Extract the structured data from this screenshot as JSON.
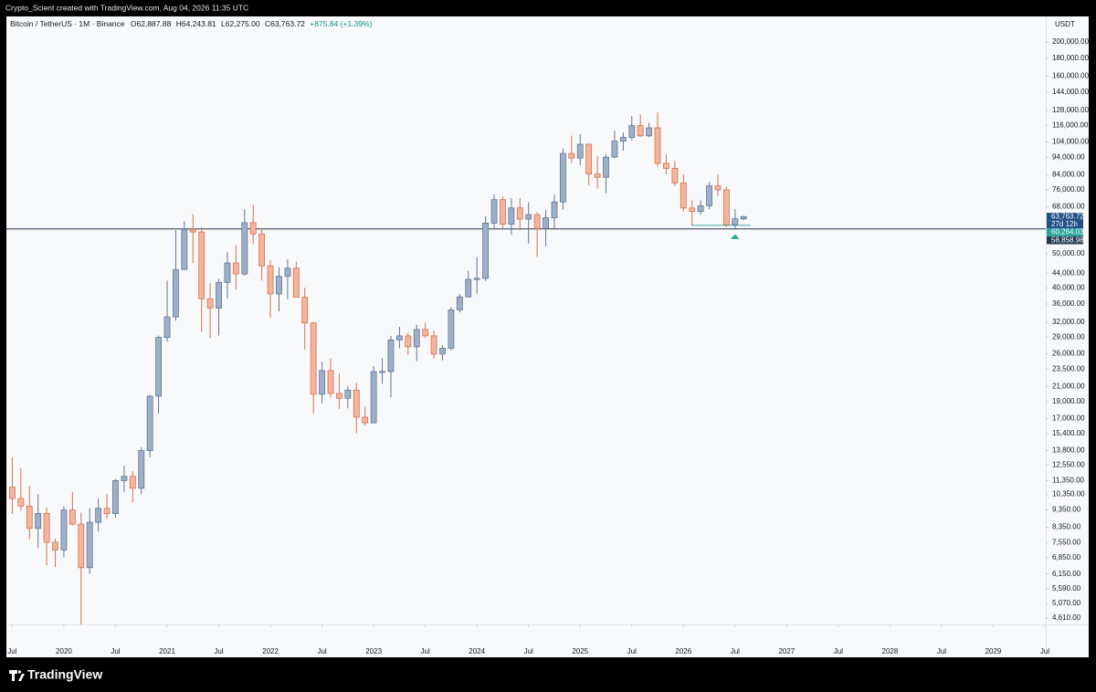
{
  "caption": "Crypto_Scient created with TradingView.com, Aug 04, 2026 11:35 UTC",
  "brand": "TradingView",
  "chart_data": {
    "type": "candlestick",
    "header": {
      "symbol": "Bitcoin / TetherUS · 1M · Binance",
      "open": "O62,887.88",
      "high": "H64,243.81",
      "low": "L62,275.00",
      "close": "C63,763.72",
      "change": "+875.84 (+1.39%)"
    },
    "currency": "USDT",
    "log_scale": true,
    "grid": false,
    "colors": {
      "up": "#9eb0c8",
      "down": "#f5b59d",
      "up_border": "#5f7594",
      "down_border": "#d6714d",
      "background": "#f8f9fb"
    },
    "x": [
      "2019-07",
      "2019-08",
      "2019-09",
      "2019-10",
      "2019-11",
      "2019-12",
      "2020-01",
      "2020-02",
      "2020-03",
      "2020-04",
      "2020-05",
      "2020-06",
      "2020-07",
      "2020-08",
      "2020-09",
      "2020-10",
      "2020-11",
      "2020-12",
      "2021-01",
      "2021-02",
      "2021-03",
      "2021-04",
      "2021-05",
      "2021-06",
      "2021-07",
      "2021-08",
      "2021-09",
      "2021-10",
      "2021-11",
      "2021-12",
      "2022-01",
      "2022-02",
      "2022-03",
      "2022-04",
      "2022-05",
      "2022-06",
      "2022-07",
      "2022-08",
      "2022-09",
      "2022-10",
      "2022-11",
      "2022-12",
      "2023-01",
      "2023-02",
      "2023-03",
      "2023-04",
      "2023-05",
      "2023-06",
      "2023-07",
      "2023-08",
      "2023-09",
      "2023-10",
      "2023-11",
      "2023-12",
      "2024-01",
      "2024-02",
      "2024-03",
      "2024-04",
      "2024-05",
      "2024-06",
      "2024-07",
      "2024-08",
      "2024-09",
      "2024-10",
      "2024-11",
      "2024-12",
      "2025-01",
      "2025-02",
      "2025-03",
      "2025-04",
      "2025-05",
      "2025-06",
      "2025-07",
      "2025-08",
      "2025-09",
      "2025-10",
      "2025-11",
      "2025-12",
      "2026-01",
      "2026-02",
      "2026-03",
      "2026-04",
      "2026-05",
      "2026-06",
      "2026-07",
      "2026-08"
    ],
    "open": [
      10854,
      10080,
      9590,
      8290,
      9140,
      7570,
      7195,
      9350,
      8525,
      6410,
      8625,
      9450,
      9135,
      11335,
      11650,
      10777,
      13791,
      19695,
      28923,
      33092,
      45135,
      58740,
      57694,
      37253,
      35045,
      41462,
      47100,
      43824,
      61300,
      56950,
      46216,
      38466,
      43160,
      45510,
      37630,
      31801,
      19942,
      23293,
      20050,
      19423,
      20490,
      17164,
      16542,
      23125,
      23141,
      28465,
      29233,
      27210,
      30472,
      29232,
      25941,
      26962,
      34639,
      37724,
      42283,
      42580,
      61130,
      71280,
      60672,
      67540,
      62772,
      64628,
      58974,
      63328,
      70215,
      96408,
      93576,
      102430,
      84350,
      82548,
      94172,
      104591,
      107135,
      115764,
      108236,
      114049,
      90400,
      87500,
      79500,
      67500,
      66000,
      68500,
      78000,
      76000,
      60500,
      62887.88
    ],
    "high": [
      13200,
      12325,
      10950,
      10370,
      9510,
      7750,
      9575,
      10500,
      9190,
      9460,
      10080,
      10380,
      11444,
      12468,
      12050,
      14100,
      19863,
      29300,
      41950,
      58352,
      61844,
      64854,
      59500,
      41330,
      42448,
      50500,
      52920,
      67000,
      69000,
      59053,
      47990,
      45821,
      48189,
      47444,
      40023,
      31982,
      24668,
      25211,
      22799,
      20988,
      21480,
      18387,
      23960,
      25250,
      29184,
      31000,
      29820,
      31431,
      31804,
      30244,
      27488,
      35280,
      38450,
      44700,
      48969,
      63913,
      73777,
      72797,
      71979,
      71997,
      70079,
      65660,
      66498,
      73620,
      99588,
      108353,
      109588,
      102500,
      95000,
      95758,
      111980,
      110690,
      123218,
      124474,
      117900,
      126200,
      96000,
      92000,
      84000,
      71000,
      71000,
      80000,
      84000,
      77500,
      67000,
      64243.81
    ],
    "low": [
      9100,
      9320,
      7710,
      7300,
      6515,
      6435,
      6871,
      8450,
      3782,
      6150,
      8117,
      8830,
      8893,
      10518,
      9825,
      10375,
      13195,
      17570,
      28130,
      32296,
      44950,
      47044,
      30000,
      28805,
      29278,
      37332,
      39600,
      43283,
      53256,
      42000,
      32917,
      34322,
      37155,
      37578,
      26700,
      17622,
      18781,
      19520,
      18125,
      18190,
      15476,
      16256,
      16500,
      21351,
      19549,
      26942,
      25811,
      24800,
      28861,
      25166,
      24901,
      26521,
      34097,
      37629,
      38555,
      41884,
      59005,
      59191,
      56552,
      58402,
      53485,
      49000,
      52550,
      58946,
      66835,
      90500,
      89256,
      78258,
      76606,
      74434,
      93377,
      98200,
      105100,
      107350,
      107255,
      88500,
      84000,
      78000,
      66000,
      60264.03,
      64500,
      67000,
      73000,
      59500,
      58858.98,
      62275
    ],
    "close": [
      10080,
      9590,
      8290,
      9140,
      7570,
      7195,
      9350,
      8525,
      6410,
      8625,
      9450,
      9135,
      11335,
      11650,
      10777,
      13791,
      19695,
      28923,
      33092,
      45135,
      58740,
      57694,
      37253,
      35045,
      41462,
      47100,
      43824,
      61300,
      56950,
      46216,
      38466,
      43160,
      45510,
      37630,
      31801,
      19942,
      23293,
      20050,
      19423,
      20490,
      17164,
      16542,
      23125,
      23141,
      28465,
      29233,
      27210,
      30472,
      29232,
      25941,
      26962,
      34639,
      37724,
      42283,
      42580,
      61130,
      71280,
      60672,
      67540,
      62772,
      64628,
      58974,
      63328,
      70215,
      96408,
      93576,
      102430,
      84350,
      82548,
      94172,
      104591,
      107135,
      115764,
      108236,
      114049,
      90400,
      87500,
      79500,
      67500,
      66000,
      68500,
      78000,
      76000,
      60500,
      62887.88,
      63763.72
    ],
    "xlim": [
      "2019-06",
      "2029-07"
    ],
    "xticks": [
      {
        "value": "2019-07",
        "label": "Jul"
      },
      {
        "value": "2020-01",
        "label": "2020"
      },
      {
        "value": "2020-07",
        "label": "Jul"
      },
      {
        "value": "2021-01",
        "label": "2021"
      },
      {
        "value": "2021-07",
        "label": "Jul"
      },
      {
        "value": "2022-01",
        "label": "2022"
      },
      {
        "value": "2022-07",
        "label": "Jul"
      },
      {
        "value": "2023-01",
        "label": "2023"
      },
      {
        "value": "2023-07",
        "label": "Jul"
      },
      {
        "value": "2024-01",
        "label": "2024"
      },
      {
        "value": "2024-07",
        "label": "Jul"
      },
      {
        "value": "2025-01",
        "label": "2025"
      },
      {
        "value": "2025-07",
        "label": "Jul"
      },
      {
        "value": "2026-01",
        "label": "2026"
      },
      {
        "value": "2026-07",
        "label": "Jul"
      },
      {
        "value": "2027-01",
        "label": "2027"
      },
      {
        "value": "2027-07",
        "label": "Jul"
      },
      {
        "value": "2028-01",
        "label": "2028"
      },
      {
        "value": "2028-07",
        "label": "Jul"
      },
      {
        "value": "2029-01",
        "label": "2029"
      },
      {
        "value": "2029-07",
        "label": "Jul"
      }
    ],
    "ylim": [
      4420,
      236500
    ],
    "yticks": [
      {
        "value": 200000,
        "label": "200,000.00"
      },
      {
        "value": 180000,
        "label": "180,000.00"
      },
      {
        "value": 160000,
        "label": "160,000.00"
      },
      {
        "value": 144000,
        "label": "144,000.00"
      },
      {
        "value": 128000,
        "label": "128,000.00"
      },
      {
        "value": 116000,
        "label": "116,000.00"
      },
      {
        "value": 104000,
        "label": "104,000.00"
      },
      {
        "value": 94000,
        "label": "94,000.00"
      },
      {
        "value": 84000,
        "label": "84,000.00"
      },
      {
        "value": 76000,
        "label": "76,000.00"
      },
      {
        "value": 68000,
        "label": "68,000.00"
      },
      {
        "value": 50000,
        "label": "50,000.00"
      },
      {
        "value": 44000,
        "label": "44,000.00"
      },
      {
        "value": 40000,
        "label": "40,000.00"
      },
      {
        "value": 36000,
        "label": "36,000.00"
      },
      {
        "value": 32000,
        "label": "32,000.00"
      },
      {
        "value": 29000,
        "label": "29,000.00"
      },
      {
        "value": 26000,
        "label": "26,000.00"
      },
      {
        "value": 23500,
        "label": "23,500.00"
      },
      {
        "value": 21000,
        "label": "21,000.00"
      },
      {
        "value": 19000,
        "label": "19,000.00"
      },
      {
        "value": 17000,
        "label": "17,000.00"
      },
      {
        "value": 15400,
        "label": "15,400.00"
      },
      {
        "value": 13800,
        "label": "13,800.00"
      },
      {
        "value": 12550,
        "label": "12,550.00"
      },
      {
        "value": 11350,
        "label": "11,350.00"
      },
      {
        "value": 10350,
        "label": "10,350.00"
      },
      {
        "value": 9350,
        "label": "9,350.00"
      },
      {
        "value": 8350,
        "label": "8,350.00"
      },
      {
        "value": 7550,
        "label": "7,550.00"
      },
      {
        "value": 6850,
        "label": "6,850.00"
      },
      {
        "value": 6150,
        "label": "6,150.00"
      },
      {
        "value": 5590,
        "label": "5,590.00"
      },
      {
        "value": 5070,
        "label": "5,070.00"
      },
      {
        "value": 4610,
        "label": "4,610.00"
      }
    ],
    "last_price": {
      "value": 63763.72,
      "label": "63,763.72",
      "countdown": "27d 12h",
      "color": "#1f4f86"
    },
    "levels": [
      {
        "value": 60264.03,
        "label": "60,264.03",
        "color": "#26a69a",
        "line": "short"
      },
      {
        "value": 58858.98,
        "label": "58,858.98",
        "color": "#24384d",
        "line": "full"
      }
    ]
  }
}
